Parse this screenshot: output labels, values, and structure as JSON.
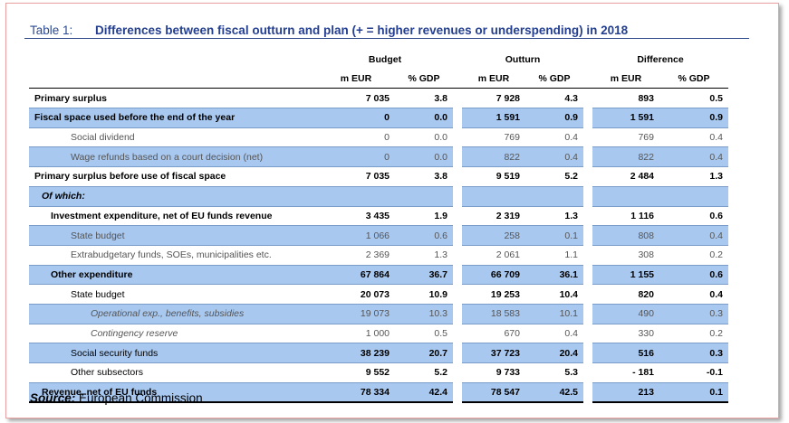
{
  "title": {
    "prefix": "Table 1:",
    "text": "Differences between fiscal outturn and plan (+ = higher revenues or underspending) in 2018"
  },
  "header": {
    "groups": [
      "Budget",
      "Outturn",
      "Difference"
    ],
    "sub": [
      "m EUR",
      "% GDP",
      "m EUR",
      "% GDP",
      "m EUR",
      "% GDP"
    ]
  },
  "rows": [
    {
      "label": "Primary surplus",
      "v": [
        "7 035",
        "3.8",
        "7 928",
        "4.3",
        "893",
        "0.5"
      ]
    },
    {
      "label": "Fiscal space used before the end of the year",
      "v": [
        "0",
        "0.0",
        "1 591",
        "0.9",
        "1 591",
        "0.9"
      ]
    },
    {
      "label": "Social dividend",
      "v": [
        "0",
        "0.0",
        "769",
        "0.4",
        "769",
        "0.4"
      ]
    },
    {
      "label": "Wage refunds based on a court decision (net)",
      "v": [
        "0",
        "0.0",
        "822",
        "0.4",
        "822",
        "0.4"
      ]
    },
    {
      "label": "Primary surplus before use of fiscal space",
      "v": [
        "7 035",
        "3.8",
        "9 519",
        "5.2",
        "2 484",
        "1.3"
      ]
    },
    {
      "label": "Of which:",
      "v": [
        "",
        "",
        "",
        "",
        "",
        ""
      ]
    },
    {
      "label": "Investment expenditure, net of EU funds revenue",
      "v": [
        "3 435",
        "1.9",
        "2 319",
        "1.3",
        "1 116",
        "0.6"
      ]
    },
    {
      "label": "State budget",
      "v": [
        "1 066",
        "0.6",
        "258",
        "0.1",
        "808",
        "0.4"
      ]
    },
    {
      "label": "Extrabudgetary funds, SOEs, municipalities etc.",
      "v": [
        "2 369",
        "1.3",
        "2 061",
        "1.1",
        "308",
        "0.2"
      ]
    },
    {
      "label": "Other expenditure",
      "v": [
        "67 864",
        "36.7",
        "66 709",
        "36.1",
        "1 155",
        "0.6"
      ]
    },
    {
      "label": "State budget",
      "v": [
        "20 073",
        "10.9",
        "19 253",
        "10.4",
        "820",
        "0.4"
      ]
    },
    {
      "label": "Operational exp., benefits, subsidies",
      "v": [
        "19 073",
        "10.3",
        "18 583",
        "10.1",
        "490",
        "0.3"
      ]
    },
    {
      "label": "Contingency reserve",
      "v": [
        "1 000",
        "0.5",
        "670",
        "0.4",
        "330",
        "0.2"
      ]
    },
    {
      "label": "Social security funds",
      "v": [
        "38 239",
        "20.7",
        "37 723",
        "20.4",
        "516",
        "0.3"
      ]
    },
    {
      "label": "Other subsectors",
      "v": [
        "9 552",
        "5.2",
        "9 733",
        "5.3",
        "- 181",
        "-0.1"
      ]
    },
    {
      "label": "Revenue, net of EU funds",
      "v": [
        "78 334",
        "42.4",
        "78 547",
        "42.5",
        "213",
        "0.1"
      ]
    }
  ],
  "source": {
    "key": "Source:",
    "text": "European Commission"
  }
}
